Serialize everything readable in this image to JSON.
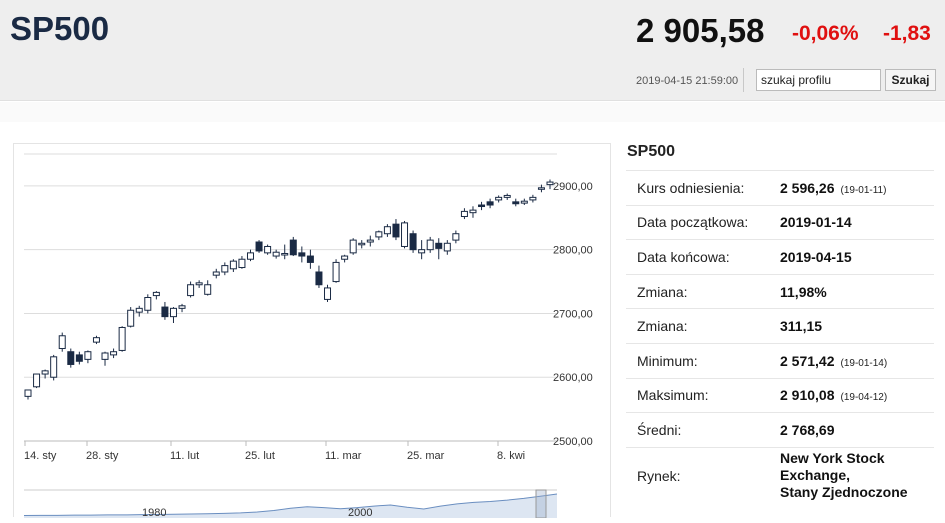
{
  "header": {
    "symbol": "SP500",
    "price": "2 905,58",
    "change_pct": "-0,06%",
    "change_abs": "-1,83",
    "timestamp": "2019-04-15 21:59:00",
    "search_value": "szukaj profilu",
    "search_button": "Szukaj"
  },
  "colors": {
    "negative": "#e01010",
    "title": "#1a2a44",
    "candle_down": "#1a2a44"
  },
  "chart_data": {
    "type": "candlestick",
    "x_ticks": [
      "14. sty",
      "28. sty",
      "11. lut",
      "25. lut",
      "11. mar",
      "25. mar",
      "8. kwi"
    ],
    "y_ticks": [
      "2900,00",
      "2800,00",
      "2700,00",
      "2600,00",
      "2500,00"
    ],
    "ylim": [
      2500,
      2950
    ],
    "candles": [
      {
        "o": 2570,
        "h": 2580,
        "l": 2565,
        "c": 2580
      },
      {
        "o": 2585,
        "h": 2605,
        "l": 2583,
        "c": 2605
      },
      {
        "o": 2605,
        "h": 2612,
        "l": 2598,
        "c": 2610
      },
      {
        "o": 2600,
        "h": 2635,
        "l": 2595,
        "c": 2632
      },
      {
        "o": 2645,
        "h": 2670,
        "l": 2640,
        "c": 2665
      },
      {
        "o": 2640,
        "h": 2645,
        "l": 2615,
        "c": 2620
      },
      {
        "o": 2635,
        "h": 2640,
        "l": 2620,
        "c": 2625
      },
      {
        "o": 2628,
        "h": 2642,
        "l": 2622,
        "c": 2640
      },
      {
        "o": 2655,
        "h": 2665,
        "l": 2652,
        "c": 2662
      },
      {
        "o": 2628,
        "h": 2640,
        "l": 2618,
        "c": 2638
      },
      {
        "o": 2635,
        "h": 2645,
        "l": 2630,
        "c": 2640
      },
      {
        "o": 2642,
        "h": 2680,
        "l": 2640,
        "c": 2678
      },
      {
        "o": 2680,
        "h": 2710,
        "l": 2678,
        "c": 2705
      },
      {
        "o": 2702,
        "h": 2712,
        "l": 2695,
        "c": 2708
      },
      {
        "o": 2705,
        "h": 2730,
        "l": 2700,
        "c": 2725
      },
      {
        "o": 2728,
        "h": 2735,
        "l": 2722,
        "c": 2733
      },
      {
        "o": 2710,
        "h": 2718,
        "l": 2690,
        "c": 2695
      },
      {
        "o": 2695,
        "h": 2710,
        "l": 2685,
        "c": 2708
      },
      {
        "o": 2708,
        "h": 2715,
        "l": 2702,
        "c": 2712
      },
      {
        "o": 2728,
        "h": 2750,
        "l": 2725,
        "c": 2745
      },
      {
        "o": 2745,
        "h": 2752,
        "l": 2740,
        "c": 2748
      },
      {
        "o": 2730,
        "h": 2752,
        "l": 2728,
        "c": 2745
      },
      {
        "o": 2760,
        "h": 2770,
        "l": 2755,
        "c": 2765
      },
      {
        "o": 2765,
        "h": 2780,
        "l": 2760,
        "c": 2775
      },
      {
        "o": 2770,
        "h": 2785,
        "l": 2765,
        "c": 2782
      },
      {
        "o": 2772,
        "h": 2790,
        "l": 2770,
        "c": 2785
      },
      {
        "o": 2785,
        "h": 2800,
        "l": 2782,
        "c": 2795
      },
      {
        "o": 2812,
        "h": 2815,
        "l": 2795,
        "c": 2798
      },
      {
        "o": 2795,
        "h": 2808,
        "l": 2792,
        "c": 2805
      },
      {
        "o": 2790,
        "h": 2800,
        "l": 2786,
        "c": 2796
      },
      {
        "o": 2792,
        "h": 2808,
        "l": 2785,
        "c": 2794
      },
      {
        "o": 2815,
        "h": 2820,
        "l": 2790,
        "c": 2792
      },
      {
        "o": 2795,
        "h": 2805,
        "l": 2780,
        "c": 2790
      },
      {
        "o": 2790,
        "h": 2800,
        "l": 2770,
        "c": 2780
      },
      {
        "o": 2765,
        "h": 2775,
        "l": 2740,
        "c": 2745
      },
      {
        "o": 2722,
        "h": 2745,
        "l": 2718,
        "c": 2740
      },
      {
        "o": 2750,
        "h": 2785,
        "l": 2748,
        "c": 2780
      },
      {
        "o": 2785,
        "h": 2792,
        "l": 2780,
        "c": 2790
      },
      {
        "o": 2795,
        "h": 2818,
        "l": 2792,
        "c": 2815
      },
      {
        "o": 2808,
        "h": 2815,
        "l": 2802,
        "c": 2810
      },
      {
        "o": 2812,
        "h": 2822,
        "l": 2805,
        "c": 2815
      },
      {
        "o": 2820,
        "h": 2830,
        "l": 2815,
        "c": 2828
      },
      {
        "o": 2825,
        "h": 2840,
        "l": 2820,
        "c": 2836
      },
      {
        "o": 2840,
        "h": 2848,
        "l": 2815,
        "c": 2820
      },
      {
        "o": 2805,
        "h": 2845,
        "l": 2802,
        "c": 2842
      },
      {
        "o": 2825,
        "h": 2830,
        "l": 2795,
        "c": 2800
      },
      {
        "o": 2795,
        "h": 2815,
        "l": 2785,
        "c": 2800
      },
      {
        "o": 2800,
        "h": 2820,
        "l": 2795,
        "c": 2815
      },
      {
        "o": 2810,
        "h": 2818,
        "l": 2785,
        "c": 2802
      },
      {
        "o": 2798,
        "h": 2815,
        "l": 2792,
        "c": 2810
      },
      {
        "o": 2815,
        "h": 2830,
        "l": 2810,
        "c": 2825
      },
      {
        "o": 2852,
        "h": 2865,
        "l": 2848,
        "c": 2860
      },
      {
        "o": 2858,
        "h": 2868,
        "l": 2850,
        "c": 2862
      },
      {
        "o": 2870,
        "h": 2875,
        "l": 2862,
        "c": 2868
      },
      {
        "o": 2875,
        "h": 2880,
        "l": 2865,
        "c": 2870
      },
      {
        "o": 2878,
        "h": 2885,
        "l": 2874,
        "c": 2882
      },
      {
        "o": 2882,
        "h": 2888,
        "l": 2878,
        "c": 2885
      },
      {
        "o": 2875,
        "h": 2880,
        "l": 2868,
        "c": 2872
      },
      {
        "o": 2873,
        "h": 2880,
        "l": 2870,
        "c": 2876
      },
      {
        "o": 2878,
        "h": 2886,
        "l": 2874,
        "c": 2882
      },
      {
        "o": 2895,
        "h": 2902,
        "l": 2890,
        "c": 2897
      },
      {
        "o": 2902,
        "h": 2910,
        "l": 2895,
        "c": 2906
      }
    ],
    "overview": {
      "labels": [
        "1980",
        "2000"
      ],
      "series": [
        0.02,
        0.03,
        0.03,
        0.04,
        0.04,
        0.05,
        0.05,
        0.06,
        0.07,
        0.08,
        0.09,
        0.1,
        0.12,
        0.14,
        0.18,
        0.25,
        0.35,
        0.42,
        0.38,
        0.33,
        0.38,
        0.45,
        0.5,
        0.4,
        0.32,
        0.45,
        0.55,
        0.62,
        0.66,
        0.72,
        0.8,
        0.9,
        1.0
      ]
    }
  },
  "panel": {
    "title": "SP500",
    "rows": [
      {
        "label": "Kurs odniesienia:",
        "value": "2 596,26",
        "sub": "(19-01-11)"
      },
      {
        "label": "Data początkowa:",
        "value": "2019-01-14",
        "sub": ""
      },
      {
        "label": "Data końcowa:",
        "value": "2019-04-15",
        "sub": ""
      },
      {
        "label": "Zmiana:",
        "value": "11,98%",
        "sub": ""
      },
      {
        "label": "Zmiana:",
        "value": "311,15",
        "sub": ""
      },
      {
        "label": "Minimum:",
        "value": "2 571,42",
        "sub": "(19-01-14)"
      },
      {
        "label": "Maksimum:",
        "value": "2 910,08",
        "sub": "(19-04-12)"
      },
      {
        "label": "Średni:",
        "value": "2 768,69",
        "sub": ""
      }
    ],
    "market_label": "Rynek:",
    "market_lines": [
      "New York Stock",
      "Exchange,",
      "Stany Zjednoczone"
    ]
  }
}
